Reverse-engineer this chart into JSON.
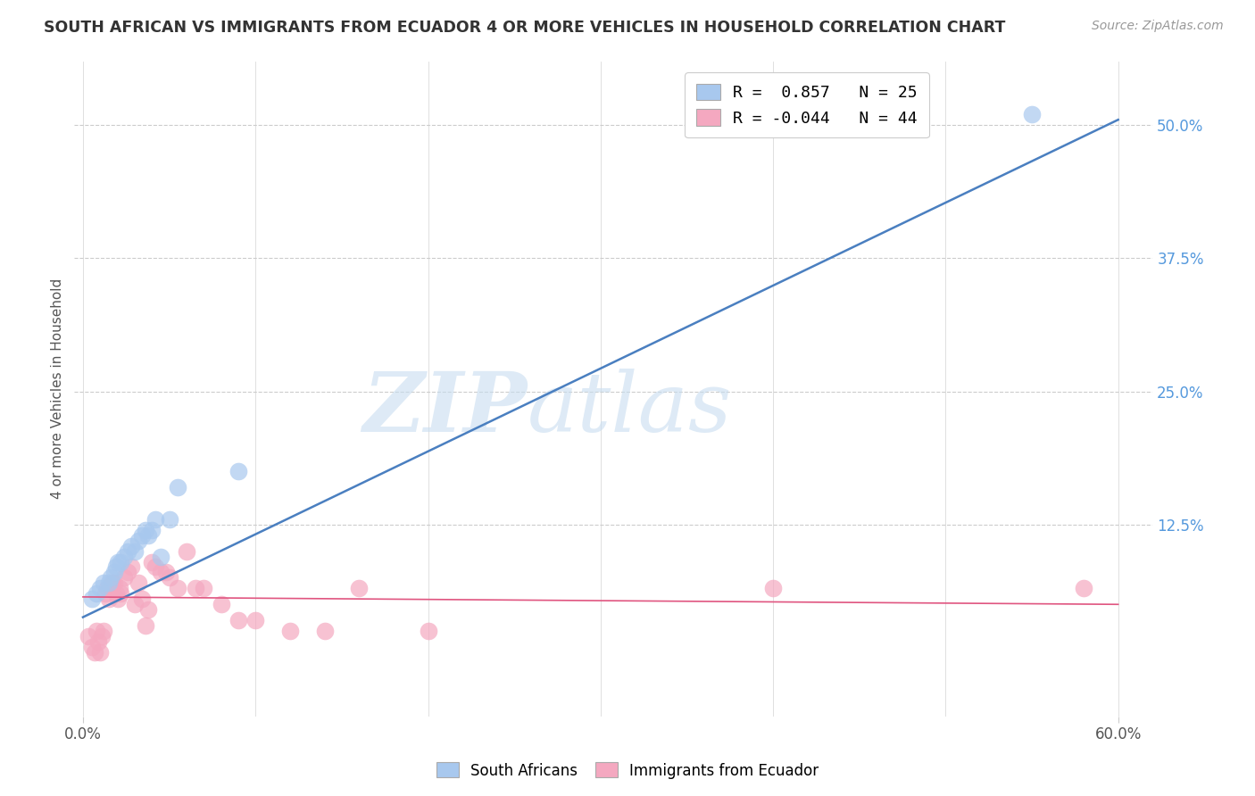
{
  "title": "SOUTH AFRICAN VS IMMIGRANTS FROM ECUADOR 4 OR MORE VEHICLES IN HOUSEHOLD CORRELATION CHART",
  "source": "Source: ZipAtlas.com",
  "ylabel": "4 or more Vehicles in Household",
  "xlim": [
    -0.005,
    0.62
  ],
  "ylim": [
    -0.055,
    0.56
  ],
  "xtick_vals": [
    0.0,
    0.6
  ],
  "xtick_labels": [
    "0.0%",
    "60.0%"
  ],
  "yticks_right": [
    0.5,
    0.375,
    0.25,
    0.125
  ],
  "ytick_labels_right": [
    "50.0%",
    "37.5%",
    "25.0%",
    "12.5%"
  ],
  "legend_blue_R": "0.857",
  "legend_blue_N": "25",
  "legend_pink_R": "-0.044",
  "legend_pink_N": "44",
  "blue_color": "#a8c8ee",
  "pink_color": "#f4a8c0",
  "blue_line_color": "#4a7fc0",
  "pink_line_color": "#e05580",
  "watermark_zip": "ZIP",
  "watermark_atlas": "atlas",
  "blue_line_x0": 0.0,
  "blue_line_y0": 0.038,
  "blue_line_x1": 0.6,
  "blue_line_y1": 0.505,
  "pink_line_x0": 0.0,
  "pink_line_y0": 0.057,
  "pink_line_x1": 0.6,
  "pink_line_y1": 0.05,
  "blue_scatter_x": [
    0.005,
    0.008,
    0.01,
    0.012,
    0.015,
    0.016,
    0.018,
    0.019,
    0.02,
    0.022,
    0.024,
    0.026,
    0.028,
    0.03,
    0.032,
    0.034,
    0.036,
    0.038,
    0.04,
    0.042,
    0.045,
    0.05,
    0.055,
    0.09,
    0.55
  ],
  "blue_scatter_y": [
    0.055,
    0.06,
    0.065,
    0.07,
    0.07,
    0.075,
    0.08,
    0.085,
    0.09,
    0.09,
    0.095,
    0.1,
    0.105,
    0.1,
    0.11,
    0.115,
    0.12,
    0.115,
    0.12,
    0.13,
    0.095,
    0.13,
    0.16,
    0.175,
    0.51
  ],
  "pink_scatter_x": [
    0.003,
    0.005,
    0.007,
    0.008,
    0.009,
    0.01,
    0.011,
    0.012,
    0.013,
    0.014,
    0.015,
    0.016,
    0.017,
    0.018,
    0.019,
    0.02,
    0.021,
    0.022,
    0.024,
    0.026,
    0.028,
    0.03,
    0.032,
    0.034,
    0.036,
    0.038,
    0.04,
    0.042,
    0.045,
    0.048,
    0.05,
    0.055,
    0.06,
    0.065,
    0.07,
    0.08,
    0.09,
    0.1,
    0.12,
    0.14,
    0.16,
    0.2,
    0.4,
    0.58
  ],
  "pink_scatter_y": [
    0.02,
    0.01,
    0.005,
    0.025,
    0.015,
    0.005,
    0.02,
    0.025,
    0.06,
    0.065,
    0.055,
    0.065,
    0.07,
    0.07,
    0.06,
    0.055,
    0.065,
    0.06,
    0.075,
    0.08,
    0.085,
    0.05,
    0.07,
    0.055,
    0.03,
    0.045,
    0.09,
    0.085,
    0.08,
    0.08,
    0.075,
    0.065,
    0.1,
    0.065,
    0.065,
    0.05,
    0.035,
    0.035,
    0.025,
    0.025,
    0.065,
    0.025,
    0.065,
    0.065
  ]
}
